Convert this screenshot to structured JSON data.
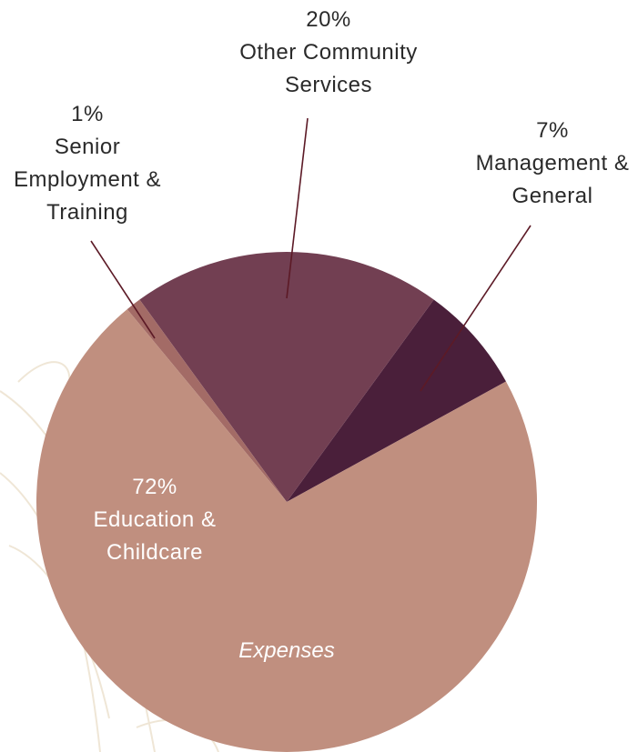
{
  "chart_data": {
    "type": "pie",
    "subtitle": "Expenses",
    "categories": [
      "Management & General",
      "Other Community Services",
      "Senior Employment & Training",
      "Education & Childcare"
    ],
    "values": [
      7,
      20,
      1,
      72
    ],
    "value_labels": [
      "7%",
      "20%",
      "1%",
      "72%"
    ],
    "colors": [
      "#4a1f3a",
      "#723f52",
      "#a36b66",
      "#c08f7f"
    ]
  }
}
